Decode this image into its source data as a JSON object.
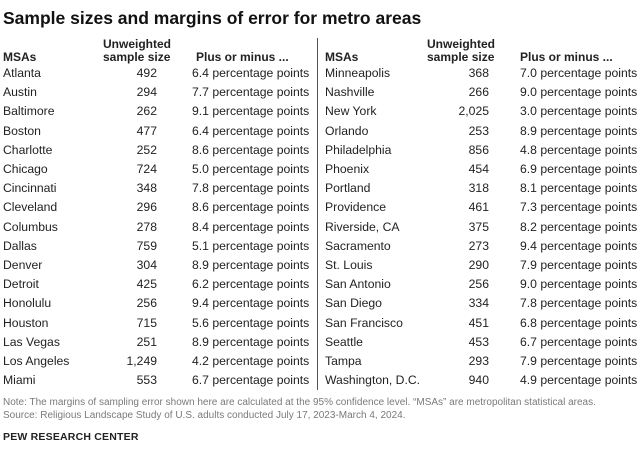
{
  "title": "Sample sizes and margins of error for metro areas",
  "headers": {
    "msa": "MSAs",
    "size_line1": "Unweighted",
    "size_line2": "sample size",
    "moe": "Plus or minus ..."
  },
  "left_rows": [
    {
      "msa": "Atlanta",
      "size": "492",
      "moe": "6.4 percentage points"
    },
    {
      "msa": "Austin",
      "size": "294",
      "moe": "7.7 percentage points"
    },
    {
      "msa": "Baltimore",
      "size": "262",
      "moe": "9.1 percentage points"
    },
    {
      "msa": "Boston",
      "size": "477",
      "moe": "6.4 percentage points"
    },
    {
      "msa": "Charlotte",
      "size": "252",
      "moe": "8.6 percentage points"
    },
    {
      "msa": "Chicago",
      "size": "724",
      "moe": "5.0 percentage points"
    },
    {
      "msa": "Cincinnati",
      "size": "348",
      "moe": "7.8 percentage points"
    },
    {
      "msa": "Cleveland",
      "size": "296",
      "moe": "8.6 percentage points"
    },
    {
      "msa": "Columbus",
      "size": "278",
      "moe": "8.4 percentage points"
    },
    {
      "msa": "Dallas",
      "size": "759",
      "moe": "5.1 percentage points"
    },
    {
      "msa": "Denver",
      "size": "304",
      "moe": "8.9 percentage points"
    },
    {
      "msa": "Detroit",
      "size": "425",
      "moe": "6.2 percentage points"
    },
    {
      "msa": "Honolulu",
      "size": "256",
      "moe": "9.4 percentage points"
    },
    {
      "msa": "Houston",
      "size": "715",
      "moe": "5.6 percentage points"
    },
    {
      "msa": "Las Vegas",
      "size": "251",
      "moe": "8.9 percentage points"
    },
    {
      "msa": "Los Angeles",
      "size": "1,249",
      "moe": "4.2 percentage points"
    },
    {
      "msa": "Miami",
      "size": "553",
      "moe": "6.7 percentage points"
    }
  ],
  "right_rows": [
    {
      "msa": "Minneapolis",
      "size": "368",
      "moe": "7.0 percentage points"
    },
    {
      "msa": "Nashville",
      "size": "266",
      "moe": "9.0 percentage points"
    },
    {
      "msa": "New York",
      "size": "2,025",
      "moe": "3.0 percentage points"
    },
    {
      "msa": "Orlando",
      "size": "253",
      "moe": "8.9 percentage points"
    },
    {
      "msa": "Philadelphia",
      "size": "856",
      "moe": "4.8 percentage points"
    },
    {
      "msa": "Phoenix",
      "size": "454",
      "moe": "6.9 percentage points"
    },
    {
      "msa": "Portland",
      "size": "318",
      "moe": "8.1 percentage points"
    },
    {
      "msa": "Providence",
      "size": "461",
      "moe": "7.3 percentage points"
    },
    {
      "msa": "Riverside, CA",
      "size": "375",
      "moe": "8.2 percentage points"
    },
    {
      "msa": "Sacramento",
      "size": "273",
      "moe": "9.4 percentage points"
    },
    {
      "msa": "St. Louis",
      "size": "290",
      "moe": "7.9 percentage points"
    },
    {
      "msa": "San Antonio",
      "size": "256",
      "moe": "9.0 percentage points"
    },
    {
      "msa": "San Diego",
      "size": "334",
      "moe": "7.8 percentage points"
    },
    {
      "msa": "San Francisco",
      "size": "451",
      "moe": "6.8 percentage points"
    },
    {
      "msa": "Seattle",
      "size": "453",
      "moe": "6.7 percentage points"
    },
    {
      "msa": "Tampa",
      "size": "293",
      "moe": "7.9 percentage points"
    },
    {
      "msa": "Washington, D.C.",
      "size": "940",
      "moe": "4.9 percentage points"
    }
  ],
  "note": "Note: The margins of sampling error shown here are calculated at the 95% confidence level. “MSAs” are metropolitan statistical areas.",
  "source": "Source: Religious Landscape Study of U.S. adults conducted July 17, 2023-March 4, 2024.",
  "brand": "PEW RESEARCH CENTER"
}
